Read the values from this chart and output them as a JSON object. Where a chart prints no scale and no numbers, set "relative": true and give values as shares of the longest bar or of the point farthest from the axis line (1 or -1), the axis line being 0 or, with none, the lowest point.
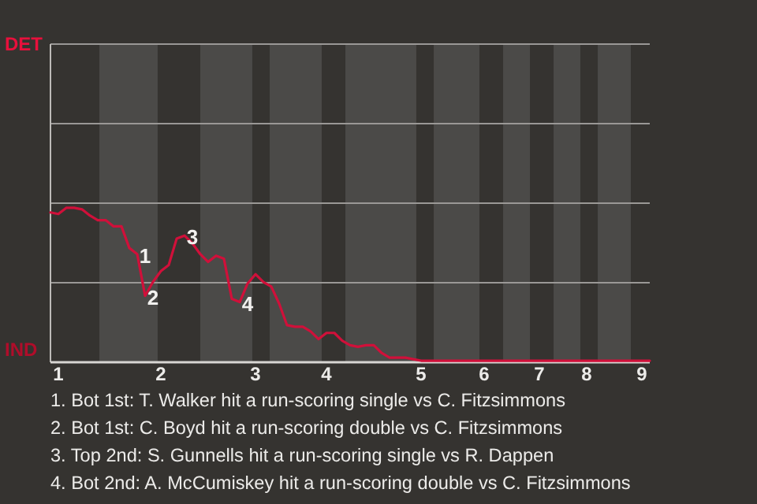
{
  "chart_data": {
    "type": "line",
    "relative": true,
    "categories": [
      null,
      "1",
      null,
      null,
      null,
      null,
      null,
      null,
      null,
      null,
      null,
      null,
      null,
      null,
      "2",
      null,
      null,
      null,
      null,
      null,
      null,
      null,
      null,
      null,
      null,
      null,
      "3",
      null,
      null,
      null,
      null,
      null,
      null,
      null,
      null,
      "4",
      null,
      null,
      null,
      null,
      null,
      null,
      null,
      null,
      null,
      null,
      null,
      "5",
      null,
      null,
      null,
      null,
      null,
      null,
      null,
      "6",
      null,
      null,
      null,
      null,
      null,
      null,
      "7",
      null,
      null,
      null,
      null,
      null,
      "8",
      null,
      null,
      null,
      null,
      null,
      null,
      "9",
      null
    ],
    "series": [
      {
        "color": "#d0103a",
        "values": [
          0.97,
          0.96,
          1,
          1,
          0.99,
          0.95,
          0.92,
          0.92,
          0.88,
          0.88,
          0.74,
          0.7,
          0.43,
          0.52,
          0.59,
          0.63,
          0.8,
          0.82,
          0.77,
          0.7,
          0.65,
          0.69,
          0.67,
          0.41,
          0.39,
          0.51,
          0.57,
          0.52,
          0.49,
          0.38,
          0.24,
          0.23,
          0.23,
          0.2,
          0.15,
          0.19,
          0.19,
          0.14,
          0.11,
          0.1,
          0.11,
          0.11,
          0.06,
          0.03,
          0.03,
          0.03,
          0.02,
          0.01,
          0.01,
          0.01,
          0.01,
          0.01,
          0.01,
          0.01,
          0.01,
          0.01,
          0.01,
          0.01,
          0.01,
          0.01,
          0.01,
          0.01,
          0.01,
          0.01,
          0.01,
          0.01,
          0.01,
          0.01,
          0.01,
          0.01,
          0.01,
          0.01,
          0.01,
          0.01,
          0.01,
          0.01,
          0.01
        ]
      }
    ],
    "ref_lines": [
      {
        "axis": "y",
        "value": 0.515,
        "color": "#9a9896"
      },
      {
        "axis": "y",
        "value": 1.03,
        "color": "#9a9896"
      },
      {
        "axis": "y",
        "value": 1.545,
        "color": "#9a9896"
      },
      {
        "axis": "y",
        "value": 2.06,
        "color": "#9a9896"
      }
    ],
    "marker": "none",
    "line_style": "solid",
    "annotations": [
      {
        "text": "1",
        "y": 0.7
      },
      {
        "text": "2",
        "y": 0.43
      },
      {
        "text": "3",
        "y": 0.82
      },
      {
        "text": "4",
        "y": 0.39
      },
      "DET",
      "IND",
      "1. Bot 1st: T. Walker hit a run-scoring single vs C. Fitzsimmons",
      "2. Bot 1st: C. Boyd hit a run-scoring double vs C. Fitzsimmons",
      "3. Top 2nd: S. Gunnells hit a run-scoring single vs R. Dappen",
      "4. Bot 2nd: A. McCumiskey hit a run-scoring double vs C. Fitzsimmons"
    ]
  }
}
